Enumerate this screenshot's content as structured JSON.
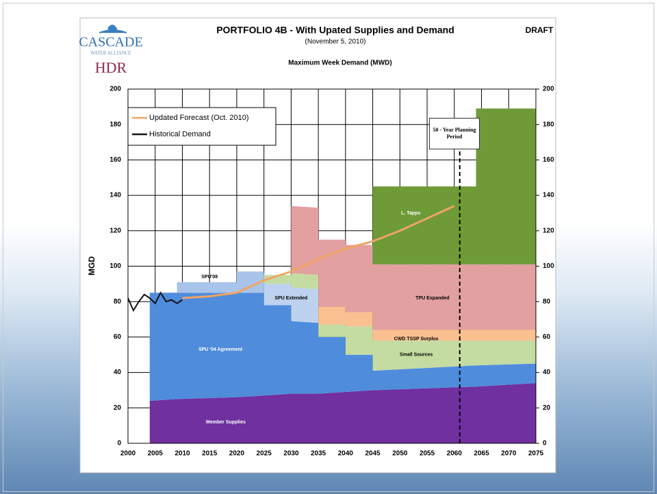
{
  "logo": {
    "name": "CASCADE",
    "tagline": "WATER ALLIANCE",
    "firm": "HDR"
  },
  "chart_data": {
    "type": "stacked_area",
    "title": "PORTFOLIO 4B - With Upated Supplies and Demand",
    "subtitle": "(November 5, 2010)",
    "chart_subtitle": "Maximum Week Demand (MWD)",
    "badge": "DRAFT",
    "ylabel": "MGD",
    "planning_note": "50 - Year Planning Period",
    "planning_year": 2061,
    "xlim": [
      2000,
      2075
    ],
    "xticks": [
      2000,
      2005,
      2010,
      2015,
      2020,
      2025,
      2030,
      2035,
      2040,
      2045,
      2050,
      2055,
      2060,
      2065,
      2070,
      2075
    ],
    "ylim": [
      0,
      200
    ],
    "yticks": [
      0,
      20,
      40,
      60,
      80,
      100,
      120,
      140,
      160,
      180,
      200
    ],
    "y2lim": [
      0,
      200
    ],
    "y2ticks": [
      0,
      20,
      40,
      60,
      80,
      100,
      120,
      140,
      160,
      180,
      200
    ],
    "grid": true,
    "legend": "upper left",
    "x": [
      2004,
      2009,
      2009,
      2020,
      2020,
      2025,
      2025,
      2030,
      2030,
      2035,
      2035,
      2040,
      2040,
      2045,
      2045,
      2064,
      2064,
      2075
    ],
    "series": [
      {
        "name": "Member Supplies",
        "color": "#7030a0",
        "values": [
          24,
          25,
          25,
          26,
          26,
          27,
          27,
          28,
          28,
          28,
          28,
          29,
          29,
          30,
          30,
          32,
          32,
          34
        ]
      },
      {
        "name": "SPU '04 Agreement",
        "color": "#4f8ddc",
        "values": [
          61,
          60,
          60,
          59,
          59,
          58,
          51,
          50,
          41,
          40,
          32,
          31,
          21,
          20,
          11,
          12,
          12,
          11
        ]
      },
      {
        "name": "SPU'08",
        "color": "#a9c4ea",
        "values": [
          null,
          null,
          6,
          6,
          12,
          12,
          null,
          null,
          null,
          null,
          null,
          null,
          null,
          null,
          null,
          null,
          null,
          null
        ]
      },
      {
        "name": "SPU Extended",
        "color": "#bcd2ef",
        "values": [
          null,
          null,
          null,
          null,
          null,
          null,
          12,
          12,
          19,
          19,
          null,
          null,
          null,
          null,
          null,
          null,
          null,
          null
        ]
      },
      {
        "name": "Small Sources",
        "color": "#c4dca2",
        "values": [
          null,
          null,
          null,
          null,
          null,
          null,
          5,
          5,
          8,
          8,
          7,
          7,
          16,
          16,
          17,
          14,
          14,
          13
        ]
      },
      {
        "name": "CWD TSSP Surplus",
        "color": "#fbc08f",
        "values": [
          null,
          null,
          null,
          null,
          null,
          null,
          null,
          null,
          null,
          null,
          10,
          10,
          8,
          8,
          6,
          6,
          6,
          6
        ]
      },
      {
        "name": "TPU Expanded",
        "color": "#e3a0a0",
        "values": [
          null,
          null,
          null,
          null,
          null,
          null,
          null,
          null,
          38,
          38,
          38,
          38,
          38,
          38,
          37,
          37,
          37,
          37
        ]
      },
      {
        "name": "L. Tapps",
        "color": "#6e9b37",
        "values": [
          null,
          null,
          null,
          null,
          null,
          null,
          null,
          null,
          null,
          null,
          null,
          null,
          null,
          null,
          44,
          44,
          88,
          88
        ]
      }
    ],
    "lines": [
      {
        "name": "Updated Forecast (Oct. 2010)",
        "color": "#f0a464",
        "x": [
          2010,
          2015,
          2020,
          2025,
          2030,
          2035,
          2040,
          2045,
          2050,
          2055,
          2060
        ],
        "values": [
          82,
          83,
          85,
          92,
          97,
          104,
          110,
          114,
          120,
          127,
          134
        ]
      },
      {
        "name": "Historical Demand",
        "color": "#111111",
        "x": [
          2000,
          2001,
          2002,
          2003,
          2004,
          2005,
          2006,
          2007,
          2008,
          2009,
          2010
        ],
        "values": [
          82,
          75,
          80,
          84,
          82,
          79,
          85,
          80,
          81,
          79,
          81
        ]
      }
    ]
  }
}
